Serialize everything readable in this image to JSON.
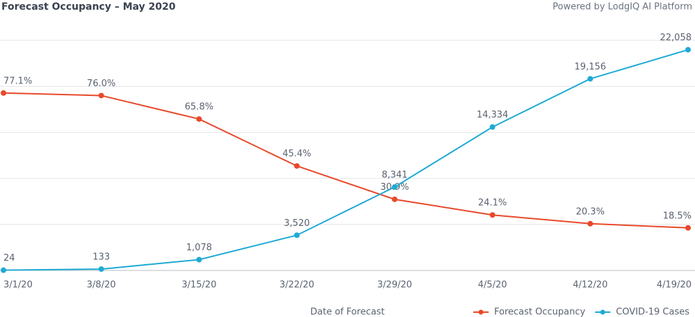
{
  "chart_data": {
    "type": "line",
    "title": "Forecast Occupancy – May 2020",
    "subtitle": "Powered by LodgIQ AI Platform",
    "x_label": "Date of Forecast",
    "categories": [
      "3/1/20",
      "3/8/20",
      "3/15/20",
      "3/22/20",
      "3/29/20",
      "4/5/20",
      "4/12/20",
      "4/19/20"
    ],
    "series": [
      {
        "name": "Forecast Occupancy",
        "color": "#e8492a",
        "values": [
          77.1,
          76.0,
          65.8,
          45.4,
          30.9,
          24.1,
          20.3,
          18.5
        ],
        "value_labels": [
          "77.1%",
          "76.0%",
          "65.8%",
          "45.4%",
          "30.9%",
          "24.1%",
          "20.3%",
          "18.5%"
        ]
      },
      {
        "name": "COVID-19 Cases",
        "color": "#1eaad4",
        "axis": "y2",
        "values": [
          24,
          133,
          1078,
          3520,
          8341,
          14334,
          19156,
          22058
        ],
        "value_labels": [
          "24",
          "133",
          "1,078",
          "3,520",
          "8,341",
          "14,334",
          "19,156",
          "22,058"
        ]
      }
    ],
    "ylim": [
      0,
      100
    ],
    "yticks": [
      0,
      20,
      40,
      60,
      80,
      100
    ],
    "y2lim": [
      0,
      23000
    ],
    "grid": true,
    "legend": "bottom-right"
  }
}
